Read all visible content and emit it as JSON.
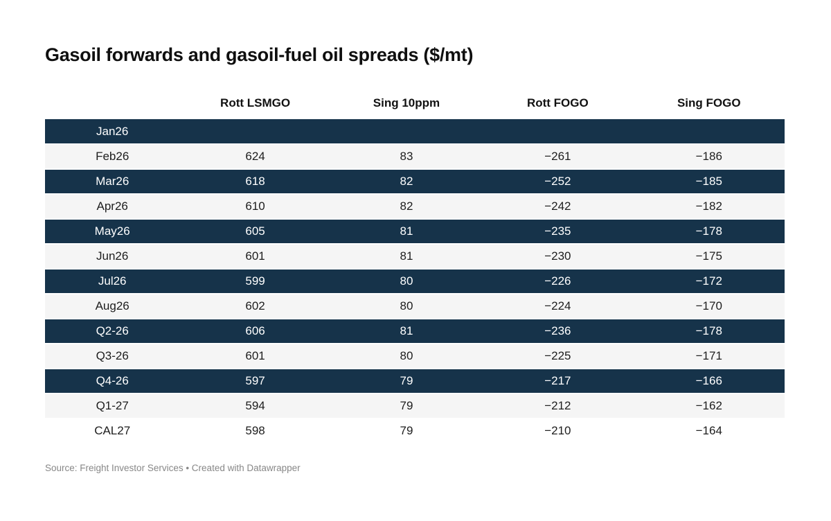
{
  "title": "Gasoil forwards and gasoil-fuel oil spreads ($/mt)",
  "colors": {
    "highlight_row_bg": "#16334a",
    "highlight_row_text": "#ffffff",
    "stripe_row_bg": "#f5f5f5",
    "plain_row_bg": "#ffffff",
    "body_text": "#1d1d1d",
    "header_text": "#111111",
    "source_text": "#878787"
  },
  "table": {
    "headers": [
      "",
      "Rott LSMGO",
      "Sing 10ppm",
      "Rott FOGO",
      "Sing FOGO"
    ],
    "rows": [
      {
        "label": "Jan26",
        "values": [
          "",
          "",
          "",
          ""
        ],
        "style": "dark"
      },
      {
        "label": "Feb26",
        "values": [
          "624",
          "83",
          "−261",
          "−186"
        ],
        "style": "stripe"
      },
      {
        "label": "Mar26",
        "values": [
          "618",
          "82",
          "−252",
          "−185"
        ],
        "style": "dark"
      },
      {
        "label": "Apr26",
        "values": [
          "610",
          "82",
          "−242",
          "−182"
        ],
        "style": "stripe"
      },
      {
        "label": "May26",
        "values": [
          "605",
          "81",
          "−235",
          "−178"
        ],
        "style": "dark"
      },
      {
        "label": "Jun26",
        "values": [
          "601",
          "81",
          "−230",
          "−175"
        ],
        "style": "stripe"
      },
      {
        "label": "Jul26",
        "values": [
          "599",
          "80",
          "−226",
          "−172"
        ],
        "style": "dark"
      },
      {
        "label": "Aug26",
        "values": [
          "602",
          "80",
          "−224",
          "−170"
        ],
        "style": "stripe"
      },
      {
        "label": "Q2-26",
        "values": [
          "606",
          "81",
          "−236",
          "−178"
        ],
        "style": "dark"
      },
      {
        "label": "Q3-26",
        "values": [
          "601",
          "80",
          "−225",
          "−171"
        ],
        "style": "stripe"
      },
      {
        "label": "Q4-26",
        "values": [
          "597",
          "79",
          "−217",
          "−166"
        ],
        "style": "dark"
      },
      {
        "label": "Q1-27",
        "values": [
          "594",
          "79",
          "−212",
          "−162"
        ],
        "style": "stripe"
      },
      {
        "label": "CAL27",
        "values": [
          "598",
          "79",
          "−210",
          "−164"
        ],
        "style": "plain"
      }
    ]
  },
  "source": "Source: Freight Investor Services • Created with Datawrapper",
  "chart_data": {
    "type": "table",
    "title": "Gasoil forwards and gasoil-fuel oil spreads ($/mt)",
    "columns": [
      "Rott LSMGO",
      "Sing 10ppm",
      "Rott FOGO",
      "Sing FOGO"
    ],
    "categories": [
      "Jan26",
      "Feb26",
      "Mar26",
      "Apr26",
      "May26",
      "Jun26",
      "Jul26",
      "Aug26",
      "Q2-26",
      "Q3-26",
      "Q4-26",
      "Q1-27",
      "CAL27"
    ],
    "series": [
      {
        "name": "Rott LSMGO",
        "values": [
          null,
          624,
          618,
          610,
          605,
          601,
          599,
          602,
          606,
          601,
          597,
          594,
          598
        ]
      },
      {
        "name": "Sing 10ppm",
        "values": [
          null,
          83,
          82,
          82,
          81,
          81,
          80,
          80,
          81,
          80,
          79,
          79,
          79
        ]
      },
      {
        "name": "Rott FOGO",
        "values": [
          null,
          -261,
          -252,
          -242,
          -235,
          -230,
          -226,
          -224,
          -236,
          -225,
          -217,
          -212,
          -210
        ]
      },
      {
        "name": "Sing FOGO",
        "values": [
          null,
          -186,
          -185,
          -182,
          -178,
          -175,
          -172,
          -170,
          -178,
          -171,
          -166,
          -162,
          -164
        ]
      }
    ],
    "highlighted_rows": [
      "Jan26",
      "Mar26",
      "May26",
      "Jul26",
      "Q2-26",
      "Q4-26"
    ],
    "source_text": "Source: Freight Investor Services • Created with Datawrapper",
    "layout_hints": {
      "striped": true,
      "value_align": "center",
      "grid": false
    }
  }
}
